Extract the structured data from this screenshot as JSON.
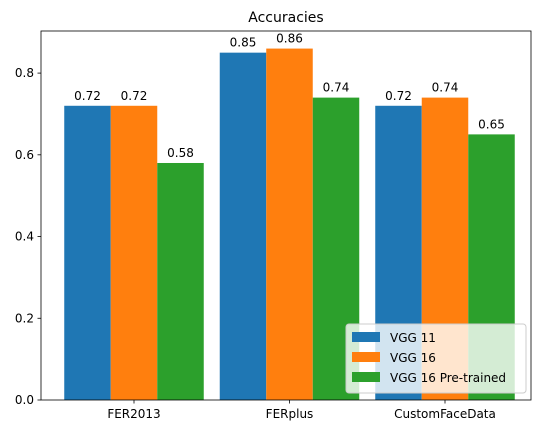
{
  "chart_data": {
    "type": "bar",
    "title": "Accuracies",
    "xlabel": "",
    "ylabel": "",
    "categories": [
      "FER2013",
      "FERplus",
      "CustomFaceData"
    ],
    "series": [
      {
        "name": "VGG 11",
        "values": [
          0.72,
          0.85,
          0.72
        ],
        "color": "#1f77b4"
      },
      {
        "name": "VGG 16",
        "values": [
          0.72,
          0.86,
          0.74
        ],
        "color": "#ff7f0e"
      },
      {
        "name": "VGG 16 Pre-trained",
        "values": [
          0.58,
          0.74,
          0.65
        ],
        "color": "#2ca02c"
      }
    ],
    "data_labels": [
      [
        "0.72",
        "0.85",
        "0.72"
      ],
      [
        "0.72",
        "0.86",
        "0.74"
      ],
      [
        "0.58",
        "0.74",
        "0.65"
      ]
    ],
    "ylim": [
      0,
      0.903
    ],
    "yticks": [
      0.0,
      0.2,
      0.4,
      0.6,
      0.8
    ],
    "ytick_labels": [
      "0.0",
      "0.2",
      "0.4",
      "0.6",
      "0.8"
    ],
    "grid": false,
    "legend_position": "lower-right"
  }
}
